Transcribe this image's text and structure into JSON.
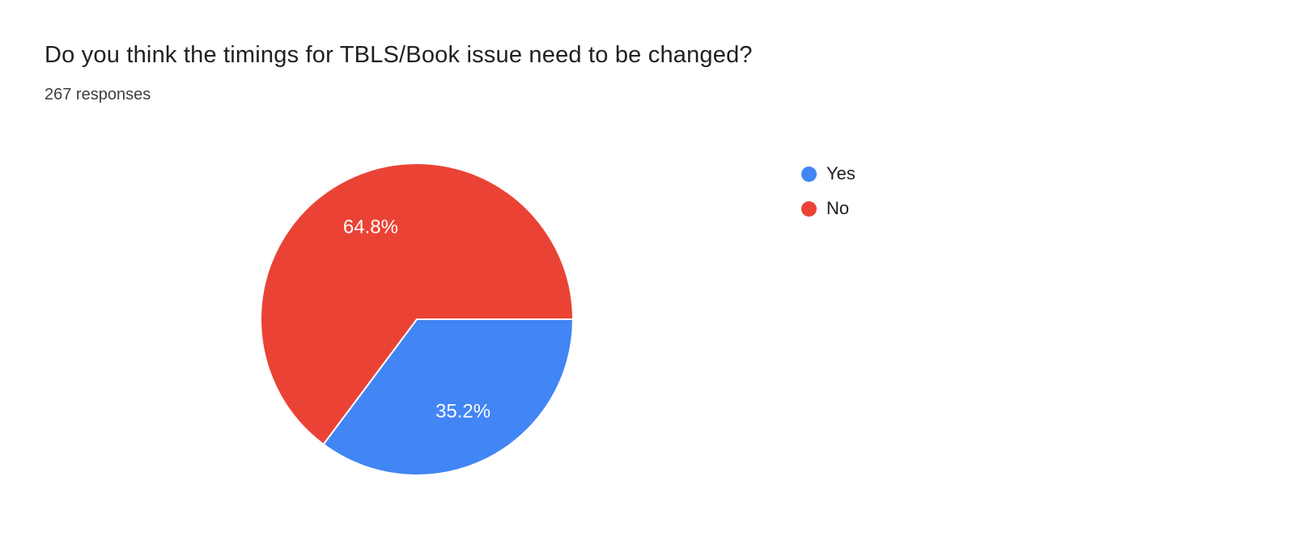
{
  "header": {
    "title": "Do you think the timings for TBLS/Book issue need to be changed?",
    "subtitle": "267 responses"
  },
  "chart_data": {
    "type": "pie",
    "title": "Do you think the timings for TBLS/Book issue need to be changed?",
    "responses_count": 267,
    "categories": [
      "Yes",
      "No"
    ],
    "values": [
      35.2,
      64.8
    ],
    "labels": [
      "35.2%",
      "64.8%"
    ],
    "colors": [
      "#4285f4",
      "#ea4335"
    ],
    "slice_border_color": "#ffffff",
    "start_angle_deg": 90,
    "direction": "clockwise",
    "legend_position": "right"
  }
}
